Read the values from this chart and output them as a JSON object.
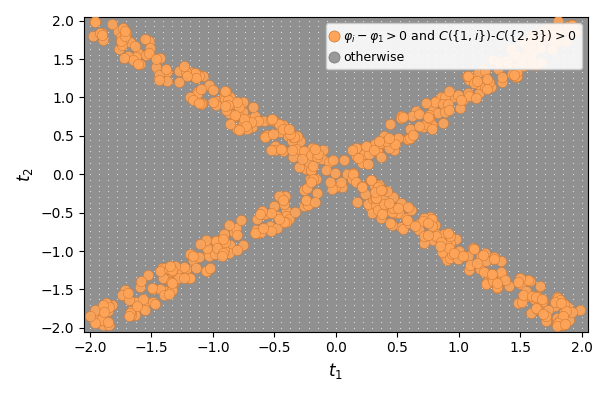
{
  "xlim": [
    -2.05,
    2.05
  ],
  "ylim": [
    -2.05,
    2.05
  ],
  "xlabel": "$t_1$",
  "ylabel": "$t_2$",
  "n_grid": 55,
  "grid_range": 2.0,
  "orange_color": "#FFA559",
  "orange_edge_color": "#CC7733",
  "gray_dot_color": "#DDDDDD",
  "background_color": "#909090",
  "legend_label_orange": "$\\varphi_i - \\varphi_1 > 0$ and $C(\\{1, i\\})$-$C(\\{2, 3\\}) > 0$",
  "legend_label_gray": "otherwise",
  "dot_size_orange": 55,
  "dot_size_gray": 3,
  "n_samples": 3000,
  "seed": 42,
  "diagonal_threshold": 0.22
}
